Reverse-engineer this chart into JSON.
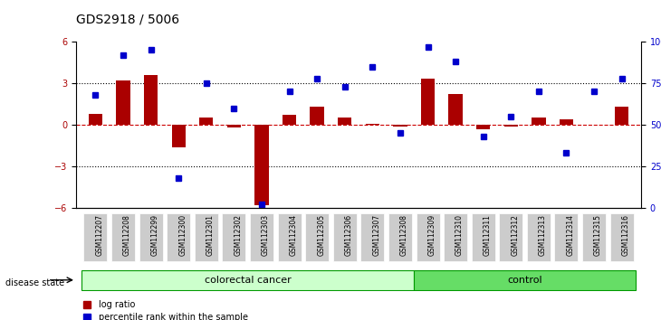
{
  "title": "GDS2918 / 5006",
  "samples": [
    "GSM112207",
    "GSM112208",
    "GSM112299",
    "GSM112300",
    "GSM112301",
    "GSM112302",
    "GSM112303",
    "GSM112304",
    "GSM112305",
    "GSM112306",
    "GSM112307",
    "GSM112308",
    "GSM112309",
    "GSM112310",
    "GSM112311",
    "GSM112312",
    "GSM112313",
    "GSM112314",
    "GSM112315",
    "GSM112316"
  ],
  "log_ratio": [
    0.8,
    3.2,
    3.6,
    -1.6,
    0.5,
    -0.2,
    -5.8,
    0.7,
    1.3,
    0.5,
    0.1,
    -0.1,
    3.3,
    2.2,
    -0.3,
    -0.1,
    0.5,
    0.4,
    0.0,
    1.3
  ],
  "percentile": [
    68,
    92,
    95,
    18,
    75,
    60,
    2,
    70,
    78,
    73,
    85,
    45,
    97,
    88,
    43,
    55,
    70,
    33,
    70,
    78
  ],
  "colorectal_cancer_count": 12,
  "control_count": 8,
  "bar_color": "#aa0000",
  "square_color": "#0000cc",
  "dotted_line_color": "#000000",
  "zero_line_color": "#cc0000",
  "ylim": [
    -6,
    6
  ],
  "yticks_left": [
    -6,
    -3,
    0,
    3,
    6
  ],
  "yticks_right": [
    0,
    25,
    50,
    75,
    100
  ],
  "colorectal_color": "#ccffcc",
  "control_color": "#66dd66",
  "colorectal_border": "#009900",
  "background_color": "#ffffff",
  "tick_label_bg": "#cccccc"
}
